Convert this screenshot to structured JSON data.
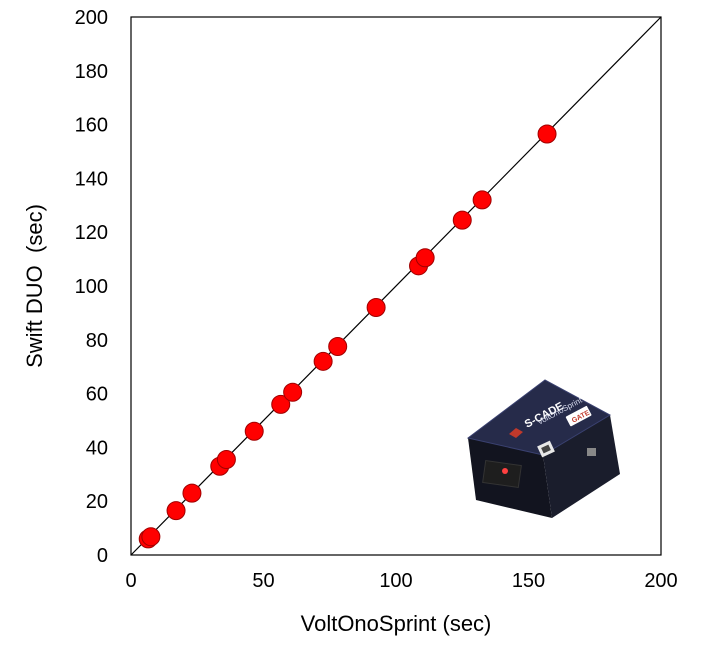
{
  "chart_data": {
    "type": "scatter",
    "title": "",
    "xlabel": "VoltOnoSprint (sec)",
    "ylabel": "Swift DUO  (sec)",
    "xlim": [
      0,
      200
    ],
    "ylim": [
      0,
      200
    ],
    "xticks": [
      0,
      50,
      100,
      150,
      200
    ],
    "yticks": [
      0,
      20,
      40,
      60,
      80,
      100,
      120,
      140,
      160,
      180,
      200
    ],
    "grid": false,
    "legend": "none",
    "reference_line": {
      "type": "y=x",
      "color": "#000000"
    },
    "marker_color": "#ff0000",
    "marker_edge_color": "#a00000",
    "series": [
      {
        "points": [
          {
            "x": 6.5,
            "y": 6.0
          },
          {
            "x": 7.5,
            "y": 6.8
          },
          {
            "x": 17.0,
            "y": 16.5
          },
          {
            "x": 23.0,
            "y": 23.0
          },
          {
            "x": 33.5,
            "y": 33.0
          },
          {
            "x": 36.0,
            "y": 35.5
          },
          {
            "x": 46.5,
            "y": 46.0
          },
          {
            "x": 56.5,
            "y": 56.0
          },
          {
            "x": 61.0,
            "y": 60.5
          },
          {
            "x": 72.5,
            "y": 72.0
          },
          {
            "x": 78.0,
            "y": 77.5
          },
          {
            "x": 92.5,
            "y": 92.0
          },
          {
            "x": 108.5,
            "y": 107.5
          },
          {
            "x": 111.0,
            "y": 110.5
          },
          {
            "x": 125.0,
            "y": 124.5
          },
          {
            "x": 132.5,
            "y": 132.0
          },
          {
            "x": 157.0,
            "y": 156.5
          }
        ]
      }
    ]
  },
  "device_photo": {
    "icon": "voltonosprint-device-photo",
    "brand_text": "S-CADE",
    "model_text": "VoltOnoSprint",
    "badge_text": "GATE",
    "body_color": "#262b4a"
  }
}
